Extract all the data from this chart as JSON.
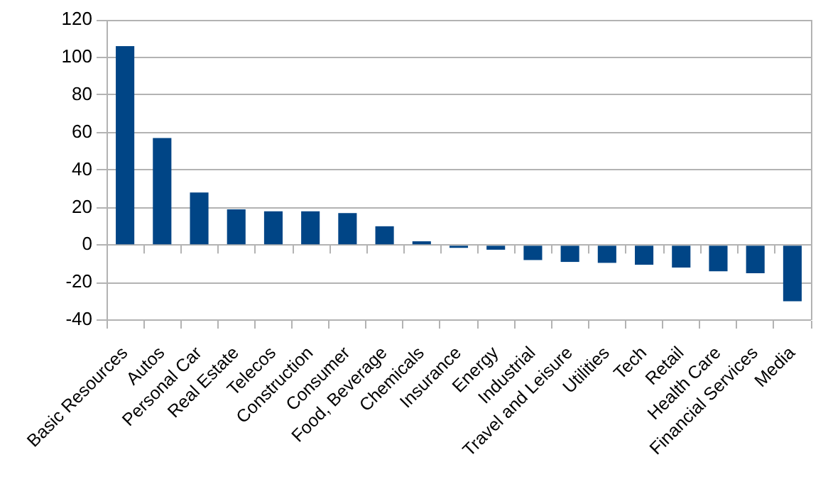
{
  "chart_data": {
    "type": "bar",
    "categories": [
      "Basic Resources",
      "Autos",
      "Personal Car",
      "Real Estate",
      "Telecos",
      "Construction",
      "Consumer",
      "Food, Beverage",
      "Chemicals",
      "Insurance",
      "Energy",
      "Industrial",
      "Travel and Leisure",
      "Utilities",
      "Tech",
      "Retail",
      "Health Care",
      "Financial Services",
      "Media"
    ],
    "values": [
      106,
      57,
      28,
      19,
      18,
      18,
      17,
      10,
      2,
      -1.5,
      -2.5,
      -8,
      -9,
      -9.5,
      -10.5,
      -12,
      -14,
      -15,
      -30
    ],
    "color": "#004586",
    "ylim": [
      -40,
      120
    ],
    "yticks": [
      -40,
      -20,
      0,
      20,
      40,
      60,
      80,
      100,
      120
    ],
    "grid": "y"
  }
}
